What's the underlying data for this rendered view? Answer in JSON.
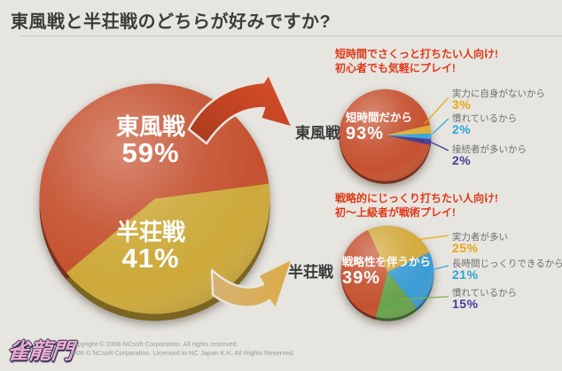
{
  "title": "東風戦と半荘戦のどちらが好みですか?",
  "colors": {
    "background": "#e7e5e0",
    "title_text": "#3e3c38",
    "headline_red": "#e03818",
    "label_gray": "#6e6e6e",
    "copyright_gray": "#9b9b9b"
  },
  "chart_data": [
    {
      "type": "pie",
      "name": "main-preference-pie",
      "start_angle": 220,
      "slices": [
        {
          "label": "東風戦",
          "value": 59,
          "pct_text": "59%",
          "color": "#c5512f"
        },
        {
          "label": "半荘戦",
          "value": 41,
          "pct_text": "41%",
          "color": "#cda939"
        }
      ]
    },
    {
      "type": "pie",
      "name": "tonpuusen-reasons-pie",
      "start_angle": 13,
      "slices": [
        {
          "label": "実力に自身がないから",
          "value": 3,
          "pct_text": "3%",
          "color": "#dcae3c",
          "pct_color": "#e8a70f",
          "line_color": "#e8a70f"
        },
        {
          "label": "慣れているから",
          "value": 2,
          "pct_text": "2%",
          "color": "#3aa5d9",
          "pct_color": "#2ba4dc",
          "line_color": "#35aadf"
        },
        {
          "label": "接続者が多いから",
          "value": 2,
          "pct_text": "2%",
          "color": "#45398f",
          "pct_color": "#4a3a9e",
          "line_color": "#4a3a9e"
        },
        {
          "label": "短時間だから",
          "value": 93,
          "pct_text": "93%",
          "color": "#c5512f"
        }
      ]
    },
    {
      "type": "pie",
      "name": "hanchan-reasons-pie",
      "start_angle": 115,
      "slices": [
        {
          "label": "実力者が多い",
          "value": 25,
          "pct_text": "25%",
          "color": "#d2a839",
          "pct_color": "#e8a70f",
          "line_color": "#e8a70f"
        },
        {
          "label": "長時間じっくりできるから",
          "value": 21,
          "pct_text": "21%",
          "color": "#3a9cd3",
          "pct_color": "#2ba4dc",
          "line_color": "#35aadf"
        },
        {
          "label": "慣れているから",
          "value": 15,
          "pct_text": "15%",
          "color": "#67a24c",
          "pct_color": "#4a3a9e",
          "line_color": "#7aad55"
        },
        {
          "label": "戦略性を伴うから",
          "value": 39,
          "pct_text": "39%",
          "color": "#c5512f"
        }
      ]
    }
  ],
  "sections": [
    {
      "headline_line1": "短時間でさくっと打ちたい人向け!",
      "headline_line2": "初心者でも気軽にプレイ!",
      "target_label": "東風戦"
    },
    {
      "headline_line1": "戦略的にじっくり打ちたい人向け!",
      "headline_line2": "初〜上級者が戦術プレイ!",
      "target_label": "半荘戦"
    }
  ],
  "footer": {
    "logo_text": "雀龍門",
    "copyright_line1": "Copyright © 2008 NCsoft Corporation. All rights reserved.",
    "copyright_line2": "2008 © NCsoft Corporation. Licensed to NC Japan K.K. All Rights Reserved."
  }
}
